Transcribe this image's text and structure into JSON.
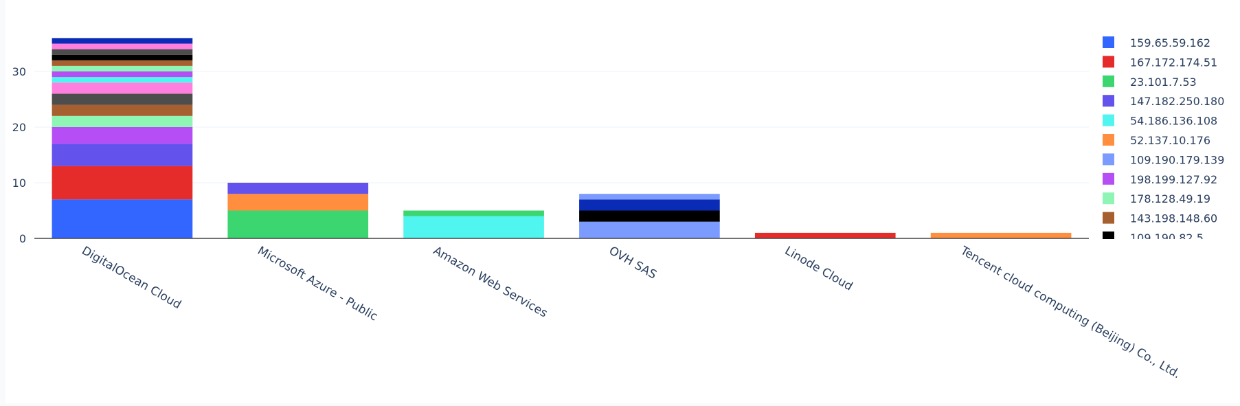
{
  "chart_data": {
    "type": "bar",
    "stacked": true,
    "categories": [
      "DigitalOcean Cloud",
      "Microsoft Azure - Public",
      "Amazon Web Services",
      "OVH SAS",
      "Linode Cloud",
      "Tencent cloud computing (Beijing) Co., Ltd."
    ],
    "ylim": [
      0,
      36
    ],
    "yticks": [
      0,
      10,
      20,
      30
    ],
    "grid": true,
    "legend_position": "right",
    "segments": [
      {
        "category": "DigitalOcean Cloud",
        "from": 0,
        "to": 7,
        "color": "#3366ff"
      },
      {
        "category": "DigitalOcean Cloud",
        "from": 7,
        "to": 13,
        "color": "#e62b2b"
      },
      {
        "category": "DigitalOcean Cloud",
        "from": 13,
        "to": 17,
        "color": "#6352eb"
      },
      {
        "category": "DigitalOcean Cloud",
        "from": 17,
        "to": 20,
        "color": "#b54ef5"
      },
      {
        "category": "DigitalOcean Cloud",
        "from": 20,
        "to": 22,
        "color": "#8ef5b5"
      },
      {
        "category": "DigitalOcean Cloud",
        "from": 22,
        "to": 24,
        "color": "#a65f2e"
      },
      {
        "category": "DigitalOcean Cloud",
        "from": 24,
        "to": 26,
        "color": "#4d4d4d"
      },
      {
        "category": "DigitalOcean Cloud",
        "from": 26,
        "to": 28,
        "color": "#ff7fdf"
      },
      {
        "category": "DigitalOcean Cloud",
        "from": 28,
        "to": 29,
        "color": "#4ff5ee"
      },
      {
        "category": "DigitalOcean Cloud",
        "from": 29,
        "to": 30,
        "color": "#b54ef5"
      },
      {
        "category": "DigitalOcean Cloud",
        "from": 30,
        "to": 31,
        "color": "#8ef5b5"
      },
      {
        "category": "DigitalOcean Cloud",
        "from": 31,
        "to": 32,
        "color": "#a65f2e"
      },
      {
        "category": "DigitalOcean Cloud",
        "from": 32,
        "to": 33,
        "color": "#000000"
      },
      {
        "category": "DigitalOcean Cloud",
        "from": 33,
        "to": 34,
        "color": "#4d4d4d"
      },
      {
        "category": "DigitalOcean Cloud",
        "from": 34,
        "to": 35,
        "color": "#ff7fdf"
      },
      {
        "category": "DigitalOcean Cloud",
        "from": 35,
        "to": 36,
        "color": "#0a2bb5"
      },
      {
        "category": "Microsoft Azure - Public",
        "from": 0,
        "to": 5,
        "color": "#3cd670"
      },
      {
        "category": "Microsoft Azure - Public",
        "from": 5,
        "to": 8,
        "color": "#ff8f3f"
      },
      {
        "category": "Microsoft Azure - Public",
        "from": 8,
        "to": 10,
        "color": "#6352eb"
      },
      {
        "category": "Amazon Web Services",
        "from": 0,
        "to": 4,
        "color": "#4ff5ee"
      },
      {
        "category": "Amazon Web Services",
        "from": 4,
        "to": 5,
        "color": "#3cd670"
      },
      {
        "category": "OVH SAS",
        "from": 0,
        "to": 3,
        "color": "#7b9bff"
      },
      {
        "category": "OVH SAS",
        "from": 3,
        "to": 5,
        "color": "#000000"
      },
      {
        "category": "OVH SAS",
        "from": 5,
        "to": 7,
        "color": "#0a2bb5"
      },
      {
        "category": "OVH SAS",
        "from": 7,
        "to": 8,
        "color": "#7b9bff"
      },
      {
        "category": "Linode Cloud",
        "from": 0,
        "to": 1,
        "color": "#e62b2b"
      },
      {
        "category": "Tencent cloud computing (Beijing) Co., Ltd.",
        "from": 0,
        "to": 1,
        "color": "#ff8f3f"
      }
    ],
    "legend": [
      {
        "label": "159.65.59.162",
        "color": "#3366ff"
      },
      {
        "label": "167.172.174.51",
        "color": "#e62b2b"
      },
      {
        "label": "23.101.7.53",
        "color": "#3cd670"
      },
      {
        "label": "147.182.250.180",
        "color": "#6352eb"
      },
      {
        "label": "54.186.136.108",
        "color": "#4ff5ee"
      },
      {
        "label": "52.137.10.176",
        "color": "#ff8f3f"
      },
      {
        "label": "109.190.179.139",
        "color": "#7b9bff"
      },
      {
        "label": "198.199.127.92",
        "color": "#b54ef5"
      },
      {
        "label": "178.128.49.19",
        "color": "#8ef5b5"
      },
      {
        "label": "143.198.148.60",
        "color": "#a65f2e"
      },
      {
        "label": "109.190.82.5",
        "color": "#000000"
      }
    ]
  }
}
